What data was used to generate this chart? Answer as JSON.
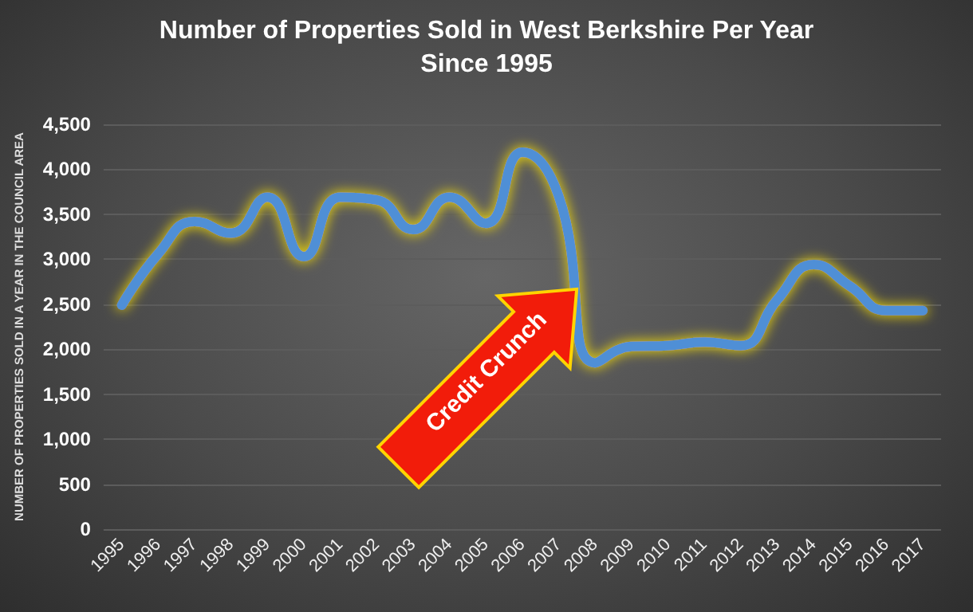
{
  "chart_data": {
    "type": "line",
    "title": "Number of Properties Sold in West Berkshire Per Year\nSince 1995",
    "ylabel": "NUMBER OF PROPERTIES SOLD IN A YEAR IN THE COUNCIL AREA",
    "categories": [
      "1995",
      "1996",
      "1997",
      "1998",
      "1999",
      "2000",
      "2001",
      "2002",
      "2003",
      "2004",
      "2005",
      "2006",
      "2007",
      "2008",
      "2009",
      "2010",
      "2011",
      "2012",
      "2013",
      "2014",
      "2015",
      "2016",
      "2017"
    ],
    "series": [
      {
        "color": "#4f8fd6",
        "values": [
          2490,
          3060,
          3420,
          3290,
          3690,
          3030,
          3690,
          3660,
          3330,
          3690,
          3400,
          4190,
          3700,
          1850,
          2030,
          2040,
          2080,
          2040,
          2550,
          2940,
          2700,
          2430,
          2430
        ]
      }
    ],
    "ylim": [
      0,
      4500
    ],
    "yticks": [
      0,
      {
        "value": 500,
        "label": "500"
      },
      {
        "value": 1000,
        "label": "1,000"
      },
      {
        "value": 1500,
        "label": "1,500"
      },
      {
        "value": 2000,
        "label": "2,000"
      },
      {
        "value": 2500,
        "label": "2,500"
      },
      {
        "value": 3000,
        "label": "3,000"
      },
      {
        "value": 3500,
        "label": "3,500"
      },
      {
        "value": 4000,
        "label": "4,000"
      },
      {
        "value": 4500,
        "label": "4,500"
      }
    ],
    "grid": "y",
    "marker": "none",
    "line_style": "solid",
    "annotations": [
      "Credit Crunch"
    ]
  }
}
